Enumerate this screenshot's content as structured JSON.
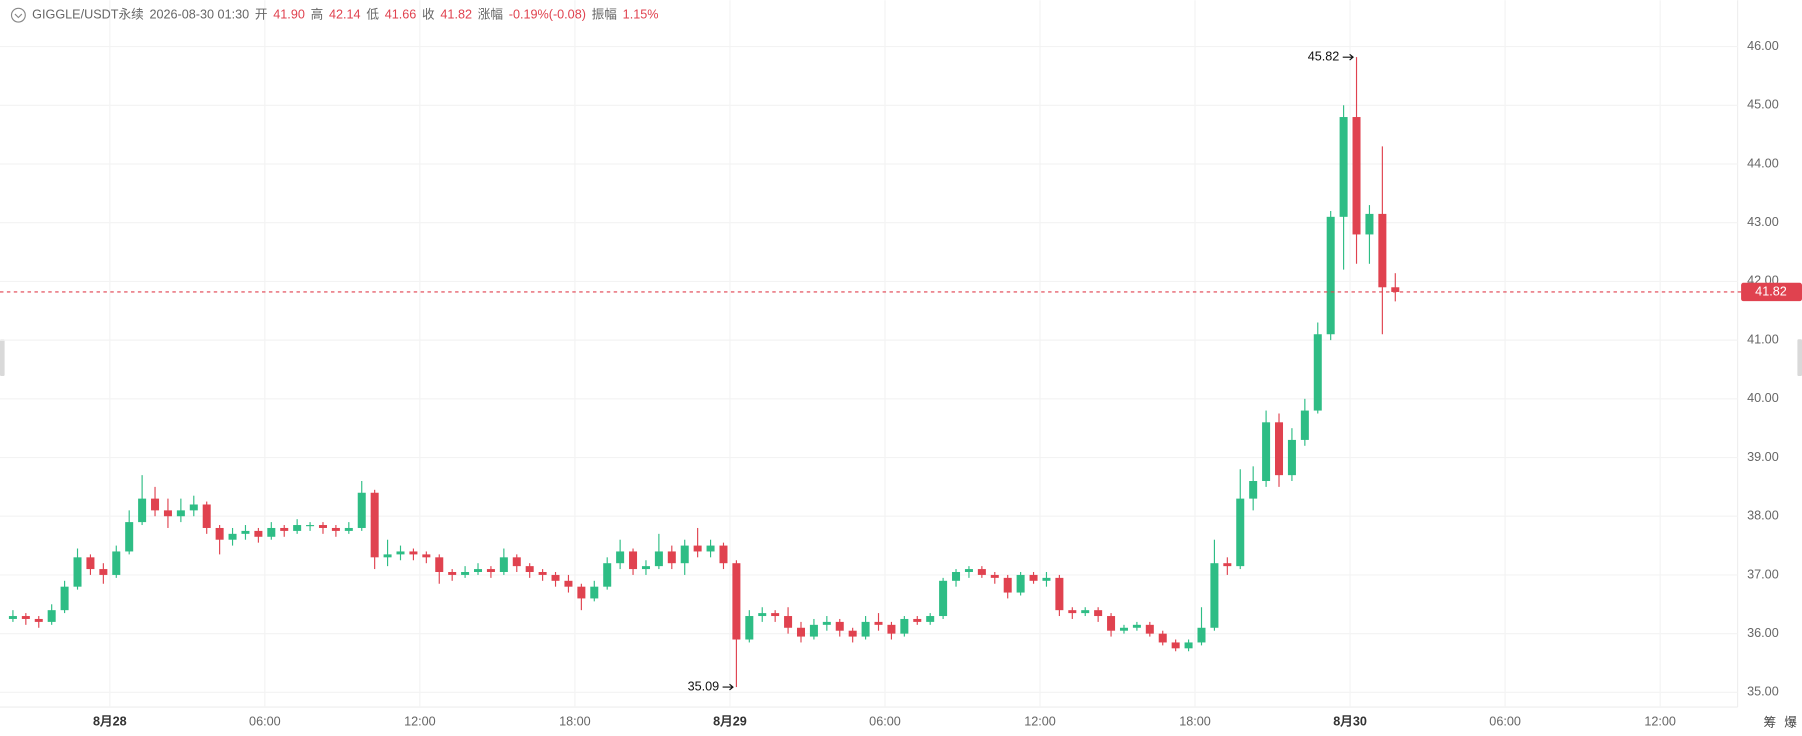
{
  "chart_data": {
    "type": "candlestick",
    "header": {
      "symbol": "GIGGLE/USDT永续",
      "time": "2026-08-30 01:30",
      "fields": [
        {
          "label": "开",
          "value": "41.90"
        },
        {
          "label": "高",
          "value": "42.14"
        },
        {
          "label": "低",
          "value": "41.66"
        },
        {
          "label": "收",
          "value": "41.82"
        },
        {
          "label": "涨幅",
          "value": "-0.19%(-0.08)"
        },
        {
          "label": "振幅",
          "value": "1.15%"
        }
      ]
    },
    "up_color": "#2ebd85",
    "down_color": "#e0424f",
    "grid": true,
    "ylim": [
      34.75,
      46.3
    ],
    "yticks": [
      {
        "value": 35,
        "label": "35.00"
      },
      {
        "value": 36,
        "label": "36.00"
      },
      {
        "value": 37,
        "label": "37.00"
      },
      {
        "value": 38,
        "label": "38.00"
      },
      {
        "value": 39,
        "label": "39.00"
      },
      {
        "value": 40,
        "label": "40.00"
      },
      {
        "value": 41,
        "label": "41.00"
      },
      {
        "value": 42,
        "label": "42.00"
      },
      {
        "value": 43,
        "label": "43.00"
      },
      {
        "value": 44,
        "label": "44.00"
      },
      {
        "value": 45,
        "label": "45.00"
      },
      {
        "value": 46,
        "label": "46.00"
      }
    ],
    "xlim": [
      "2026-08-27 19:45",
      "2026-08-30 15:00"
    ],
    "xticks": [
      {
        "value": "2026-08-28 00:00",
        "label": "8月28"
      },
      {
        "value": "2026-08-28 06:00",
        "label": "06:00"
      },
      {
        "value": "2026-08-28 12:00",
        "label": "12:00"
      },
      {
        "value": "2026-08-28 18:00",
        "label": "18:00"
      },
      {
        "value": "2026-08-29 00:00",
        "label": "8月29"
      },
      {
        "value": "2026-08-29 06:00",
        "label": "06:00"
      },
      {
        "value": "2026-08-29 12:00",
        "label": "12:00"
      },
      {
        "value": "2026-08-29 18:00",
        "label": "18:00"
      },
      {
        "value": "2026-08-30 00:00",
        "label": "8月30"
      },
      {
        "value": "2026-08-30 06:00",
        "label": "06:00"
      },
      {
        "value": "2026-08-30 12:00",
        "label": "12:00"
      }
    ],
    "last_price": 41.82,
    "max_label": 45.82,
    "min_label": 35.09,
    "toolbar": [
      "筹",
      "爆"
    ],
    "x": [
      "2026-08-27 20:00",
      "2026-08-27 20:30",
      "2026-08-27 21:00",
      "2026-08-27 21:30",
      "2026-08-27 22:00",
      "2026-08-27 22:30",
      "2026-08-27 23:00",
      "2026-08-27 23:30",
      "2026-08-28 00:00",
      "2026-08-28 00:30",
      "2026-08-28 01:00",
      "2026-08-28 01:30",
      "2026-08-28 02:00",
      "2026-08-28 02:30",
      "2026-08-28 03:00",
      "2026-08-28 03:30",
      "2026-08-28 04:00",
      "2026-08-28 04:30",
      "2026-08-28 05:00",
      "2026-08-28 05:30",
      "2026-08-28 06:00",
      "2026-08-28 06:30",
      "2026-08-28 07:00",
      "2026-08-28 07:30",
      "2026-08-28 08:00",
      "2026-08-28 08:30",
      "2026-08-28 09:00",
      "2026-08-28 09:30",
      "2026-08-28 10:00",
      "2026-08-28 10:30",
      "2026-08-28 11:00",
      "2026-08-28 11:30",
      "2026-08-28 12:00",
      "2026-08-28 12:30",
      "2026-08-28 13:00",
      "2026-08-28 13:30",
      "2026-08-28 14:00",
      "2026-08-28 14:30",
      "2026-08-28 15:00",
      "2026-08-28 15:30",
      "2026-08-28 16:00",
      "2026-08-28 16:30",
      "2026-08-28 17:00",
      "2026-08-28 17:30",
      "2026-08-28 18:00",
      "2026-08-28 18:30",
      "2026-08-28 19:00",
      "2026-08-28 19:30",
      "2026-08-28 20:00",
      "2026-08-28 20:30",
      "2026-08-28 21:00",
      "2026-08-28 21:30",
      "2026-08-28 22:00",
      "2026-08-28 22:30",
      "2026-08-28 23:00",
      "2026-08-28 23:30",
      "2026-08-29 00:00",
      "2026-08-29 00:30",
      "2026-08-29 01:00",
      "2026-08-29 01:30",
      "2026-08-29 02:00",
      "2026-08-29 02:30",
      "2026-08-29 03:00",
      "2026-08-29 03:30",
      "2026-08-29 04:00",
      "2026-08-29 04:30",
      "2026-08-29 05:00",
      "2026-08-29 05:30",
      "2026-08-29 06:00",
      "2026-08-29 06:30",
      "2026-08-29 07:00",
      "2026-08-29 07:30",
      "2026-08-29 08:00",
      "2026-08-29 08:30",
      "2026-08-29 09:00",
      "2026-08-29 09:30",
      "2026-08-29 10:00",
      "2026-08-29 10:30",
      "2026-08-29 11:00",
      "2026-08-29 11:30",
      "2026-08-29 12:00",
      "2026-08-29 12:30",
      "2026-08-29 13:00",
      "2026-08-29 13:30",
      "2026-08-29 14:00",
      "2026-08-29 14:30",
      "2026-08-29 15:00",
      "2026-08-29 15:30",
      "2026-08-29 16:00",
      "2026-08-29 16:30",
      "2026-08-29 17:00",
      "2026-08-29 17:30",
      "2026-08-29 18:00",
      "2026-08-29 18:30",
      "2026-08-29 19:00",
      "2026-08-29 19:30",
      "2026-08-29 20:00",
      "2026-08-29 20:30",
      "2026-08-29 21:00",
      "2026-08-29 21:30",
      "2026-08-29 22:00",
      "2026-08-29 22:30",
      "2026-08-29 23:00",
      "2026-08-29 23:30",
      "2026-08-30 00:00",
      "2026-08-30 00:30",
      "2026-08-30 01:00",
      "2026-08-30 01:30"
    ],
    "ohlc": [
      [
        36.25,
        36.4,
        36.2,
        36.3
      ],
      [
        36.3,
        36.35,
        36.15,
        36.25
      ],
      [
        36.25,
        36.3,
        36.1,
        36.2
      ],
      [
        36.2,
        36.5,
        36.15,
        36.4
      ],
      [
        36.4,
        36.9,
        36.35,
        36.8
      ],
      [
        36.8,
        37.45,
        36.75,
        37.3
      ],
      [
        37.3,
        37.35,
        37.0,
        37.1
      ],
      [
        37.1,
        37.2,
        36.85,
        37.0
      ],
      [
        37.0,
        37.5,
        36.95,
        37.4
      ],
      [
        37.4,
        38.1,
        37.35,
        37.9
      ],
      [
        37.9,
        38.7,
        37.85,
        38.3
      ],
      [
        38.3,
        38.5,
        38.0,
        38.1
      ],
      [
        38.1,
        38.3,
        37.8,
        38.0
      ],
      [
        38.0,
        38.3,
        37.9,
        38.1
      ],
      [
        38.1,
        38.35,
        38.0,
        38.2
      ],
      [
        38.2,
        38.25,
        37.7,
        37.8
      ],
      [
        37.8,
        37.85,
        37.35,
        37.6
      ],
      [
        37.6,
        37.8,
        37.5,
        37.7
      ],
      [
        37.7,
        37.85,
        37.6,
        37.75
      ],
      [
        37.75,
        37.8,
        37.55,
        37.65
      ],
      [
        37.65,
        37.9,
        37.6,
        37.8
      ],
      [
        37.8,
        37.85,
        37.65,
        37.75
      ],
      [
        37.75,
        37.95,
        37.7,
        37.85
      ],
      [
        37.85,
        37.9,
        37.75,
        37.85
      ],
      [
        37.85,
        37.9,
        37.7,
        37.8
      ],
      [
        37.8,
        37.85,
        37.65,
        37.75
      ],
      [
        37.75,
        37.9,
        37.7,
        37.8
      ],
      [
        37.8,
        38.6,
        37.75,
        38.4
      ],
      [
        38.4,
        38.45,
        37.1,
        37.3
      ],
      [
        37.3,
        37.6,
        37.15,
        37.35
      ],
      [
        37.35,
        37.5,
        37.25,
        37.4
      ],
      [
        37.4,
        37.45,
        37.25,
        37.35
      ],
      [
        37.35,
        37.4,
        37.2,
        37.3
      ],
      [
        37.3,
        37.35,
        36.85,
        37.05
      ],
      [
        37.05,
        37.1,
        36.9,
        37.0
      ],
      [
        37.0,
        37.15,
        36.95,
        37.05
      ],
      [
        37.05,
        37.2,
        37.0,
        37.1
      ],
      [
        37.1,
        37.15,
        36.95,
        37.05
      ],
      [
        37.05,
        37.45,
        37.0,
        37.3
      ],
      [
        37.3,
        37.35,
        37.05,
        37.15
      ],
      [
        37.15,
        37.2,
        36.95,
        37.05
      ],
      [
        37.05,
        37.1,
        36.9,
        37.0
      ],
      [
        37.0,
        37.05,
        36.8,
        36.9
      ],
      [
        36.9,
        37.0,
        36.7,
        36.8
      ],
      [
        36.8,
        36.85,
        36.4,
        36.6
      ],
      [
        36.6,
        36.9,
        36.55,
        36.8
      ],
      [
        36.8,
        37.3,
        36.75,
        37.2
      ],
      [
        37.2,
        37.6,
        37.1,
        37.4
      ],
      [
        37.4,
        37.45,
        37.0,
        37.1
      ],
      [
        37.1,
        37.25,
        37.0,
        37.15
      ],
      [
        37.15,
        37.7,
        37.1,
        37.4
      ],
      [
        37.4,
        37.5,
        37.1,
        37.2
      ],
      [
        37.2,
        37.6,
        37.0,
        37.5
      ],
      [
        37.5,
        37.8,
        37.3,
        37.4
      ],
      [
        37.4,
        37.6,
        37.3,
        37.5
      ],
      [
        37.5,
        37.55,
        37.1,
        37.2
      ],
      [
        37.2,
        37.25,
        35.09,
        35.9
      ],
      [
        35.9,
        36.4,
        35.85,
        36.3
      ],
      [
        36.3,
        36.45,
        36.2,
        36.35
      ],
      [
        36.35,
        36.4,
        36.2,
        36.3
      ],
      [
        36.3,
        36.45,
        36.0,
        36.1
      ],
      [
        36.1,
        36.2,
        35.85,
        35.95
      ],
      [
        35.95,
        36.25,
        35.9,
        36.15
      ],
      [
        36.15,
        36.3,
        36.05,
        36.2
      ],
      [
        36.2,
        36.25,
        35.95,
        36.05
      ],
      [
        36.05,
        36.1,
        35.85,
        35.95
      ],
      [
        35.95,
        36.3,
        35.9,
        36.2
      ],
      [
        36.2,
        36.35,
        36.05,
        36.15
      ],
      [
        36.15,
        36.2,
        35.9,
        36.0
      ],
      [
        36.0,
        36.3,
        35.95,
        36.25
      ],
      [
        36.25,
        36.3,
        36.15,
        36.2
      ],
      [
        36.2,
        36.35,
        36.15,
        36.3
      ],
      [
        36.3,
        36.95,
        36.25,
        36.9
      ],
      [
        36.9,
        37.1,
        36.8,
        37.05
      ],
      [
        37.05,
        37.15,
        36.95,
        37.1
      ],
      [
        37.1,
        37.15,
        36.95,
        37.0
      ],
      [
        37.0,
        37.05,
        36.85,
        36.95
      ],
      [
        36.95,
        37.0,
        36.6,
        36.7
      ],
      [
        36.7,
        37.05,
        36.65,
        37.0
      ],
      [
        37.0,
        37.05,
        36.85,
        36.9
      ],
      [
        36.9,
        37.05,
        36.8,
        36.95
      ],
      [
        36.95,
        37.0,
        36.3,
        36.4
      ],
      [
        36.4,
        36.45,
        36.25,
        36.35
      ],
      [
        36.35,
        36.45,
        36.3,
        36.4
      ],
      [
        36.4,
        36.45,
        36.2,
        36.3
      ],
      [
        36.3,
        36.35,
        35.95,
        36.05
      ],
      [
        36.05,
        36.15,
        36.0,
        36.1
      ],
      [
        36.1,
        36.2,
        36.05,
        36.15
      ],
      [
        36.15,
        36.2,
        35.95,
        36.0
      ],
      [
        36.0,
        36.05,
        35.8,
        35.85
      ],
      [
        35.85,
        35.9,
        35.7,
        35.75
      ],
      [
        35.75,
        35.9,
        35.7,
        35.85
      ],
      [
        35.85,
        36.45,
        35.8,
        36.1
      ],
      [
        36.1,
        37.6,
        36.05,
        37.2
      ],
      [
        37.2,
        37.3,
        37.0,
        37.15
      ],
      [
        37.15,
        38.8,
        37.1,
        38.3
      ],
      [
        38.3,
        38.85,
        38.1,
        38.6
      ],
      [
        38.6,
        39.8,
        38.5,
        39.6
      ],
      [
        39.6,
        39.75,
        38.5,
        38.7
      ],
      [
        38.7,
        39.5,
        38.6,
        39.3
      ],
      [
        39.3,
        40.0,
        39.2,
        39.8
      ],
      [
        39.8,
        41.3,
        39.75,
        41.1
      ],
      [
        41.1,
        43.2,
        41.0,
        43.1
      ],
      [
        43.1,
        45.0,
        42.2,
        44.8
      ],
      [
        44.8,
        45.82,
        42.3,
        42.8
      ],
      [
        42.8,
        43.3,
        42.3,
        43.15
      ],
      [
        43.15,
        44.3,
        41.1,
        41.9
      ],
      [
        41.9,
        42.14,
        41.66,
        41.82
      ]
    ]
  }
}
